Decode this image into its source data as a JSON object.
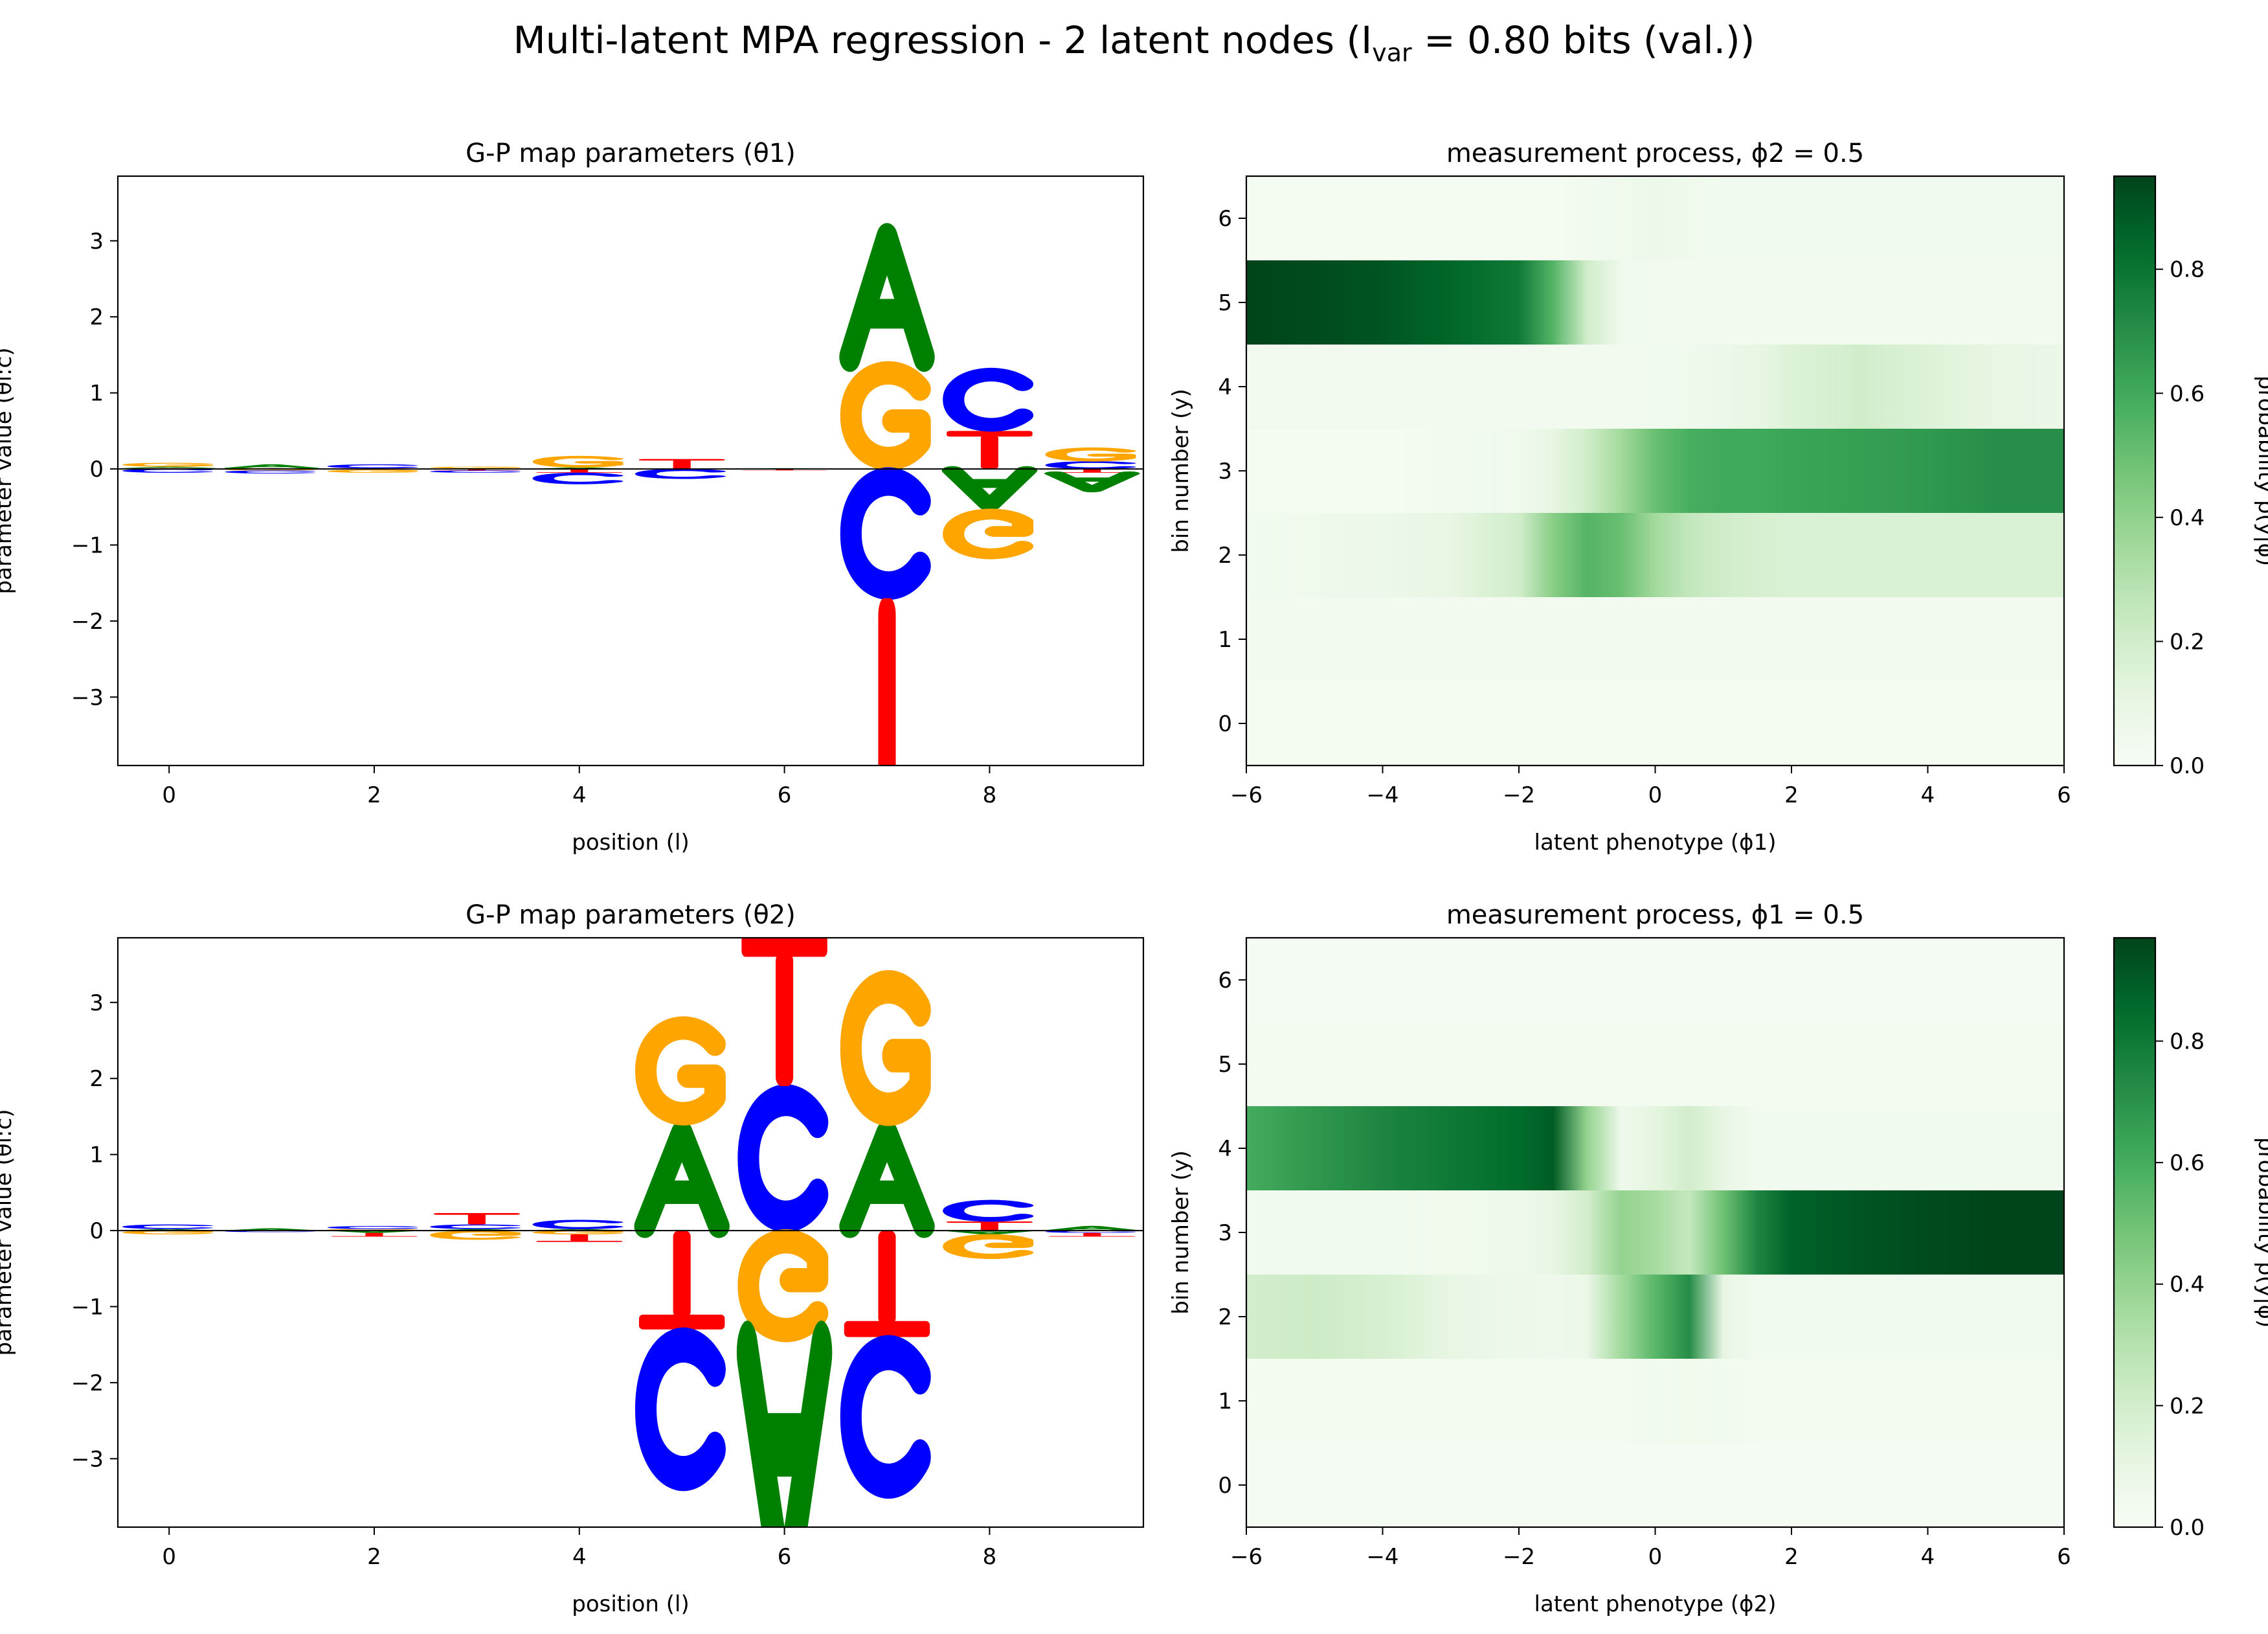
{
  "figure": {
    "title_main": "Multi-latent MPA regression - 2 latent nodes (I",
    "title_sub": "var",
    "title_end": " = 0.80 bits (val.))"
  },
  "colors": {
    "A": "#008000",
    "C": "#0000ff",
    "G": "#ffa500",
    "T": "#ff0000",
    "zero_line": "#000000"
  },
  "chart_data": [
    {
      "type": "logo",
      "title": "G-P map parameters (θ1)",
      "xlabel": "position (l)",
      "ylabel": "parameter value (θl:c)",
      "xlim": [
        -0.5,
        9.5
      ],
      "ylim": [
        -3.9,
        3.85
      ],
      "xticks": [
        0,
        2,
        4,
        6,
        8
      ],
      "yticks": [
        -3,
        -2,
        -1,
        0,
        1,
        2,
        3
      ],
      "letters": [
        "A",
        "C",
        "G",
        "T"
      ],
      "values": [
        [
          0.02,
          -0.05,
          0.05,
          0.01
        ],
        [
          0.05,
          -0.04,
          -0.02,
          0.01
        ],
        [
          -0.01,
          0.05,
          -0.04,
          0.01
        ],
        [
          0.01,
          -0.03,
          0.02,
          -0.02
        ],
        [
          0.02,
          -0.15,
          0.15,
          -0.05
        ],
        [
          0.0,
          -0.13,
          0.0,
          0.13
        ],
        [
          0.01,
          0.0,
          0.0,
          -0.02
        ],
        [
          1.78,
          -1.7,
          1.4,
          -3.7
        ],
        [
          -0.53,
          0.82,
          -0.65,
          0.5
        ],
        [
          -0.25,
          0.1,
          0.18,
          -0.05
        ]
      ]
    },
    {
      "type": "heatmap",
      "title": "measurement process, ϕ2 = 0.5",
      "xlabel": "latent phenotype (ϕ1)",
      "ylabel": "bin number (y)",
      "colorbar_label": "probability  p(y|ϕ)",
      "xlim": [
        -6,
        6
      ],
      "ylim": [
        -0.5,
        6.5
      ],
      "xticks": [
        -6,
        -4,
        -2,
        0,
        2,
        4,
        6
      ],
      "yticks": [
        0,
        1,
        2,
        3,
        4,
        5,
        6
      ],
      "clim": [
        0,
        0.95
      ],
      "cticks": [
        0.0,
        0.2,
        0.4,
        0.6,
        0.8
      ],
      "x": [
        -6,
        -5,
        -4,
        -3,
        -2,
        -1.5,
        -1,
        -0.5,
        0,
        0.5,
        1,
        1.5,
        2,
        3,
        4,
        5,
        6
      ],
      "rows": [
        {
          "bin": 0,
          "values": [
            0.02,
            0.02,
            0.02,
            0.02,
            0.02,
            0.02,
            0.02,
            0.02,
            0.02,
            0.02,
            0.02,
            0.02,
            0.02,
            0.02,
            0.02,
            0.02,
            0.02
          ]
        },
        {
          "bin": 1,
          "values": [
            0.03,
            0.03,
            0.03,
            0.03,
            0.03,
            0.03,
            0.03,
            0.03,
            0.03,
            0.03,
            0.03,
            0.03,
            0.03,
            0.03,
            0.03,
            0.03,
            0.03
          ]
        },
        {
          "bin": 2,
          "values": [
            0.04,
            0.05,
            0.07,
            0.1,
            0.2,
            0.42,
            0.55,
            0.5,
            0.35,
            0.25,
            0.2,
            0.18,
            0.16,
            0.16,
            0.16,
            0.16,
            0.16
          ]
        },
        {
          "bin": 3,
          "values": [
            0.02,
            0.02,
            0.02,
            0.03,
            0.05,
            0.1,
            0.2,
            0.35,
            0.5,
            0.58,
            0.6,
            0.6,
            0.62,
            0.64,
            0.66,
            0.7,
            0.7
          ]
        },
        {
          "bin": 4,
          "values": [
            0.03,
            0.03,
            0.03,
            0.03,
            0.03,
            0.03,
            0.03,
            0.03,
            0.04,
            0.05,
            0.07,
            0.1,
            0.15,
            0.2,
            0.15,
            0.1,
            0.08
          ]
        },
        {
          "bin": 5,
          "values": [
            0.95,
            0.93,
            0.9,
            0.85,
            0.78,
            0.55,
            0.2,
            0.05,
            0.03,
            0.03,
            0.03,
            0.03,
            0.03,
            0.03,
            0.03,
            0.03,
            0.03
          ]
        },
        {
          "bin": 6,
          "values": [
            0.02,
            0.02,
            0.02,
            0.02,
            0.02,
            0.02,
            0.03,
            0.05,
            0.06,
            0.05,
            0.04,
            0.04,
            0.04,
            0.04,
            0.04,
            0.04,
            0.04
          ]
        }
      ]
    },
    {
      "type": "logo",
      "title": "G-P map parameters (θ2)",
      "xlabel": "position (l)",
      "ylabel": "parameter value (θl:c)",
      "xlim": [
        -0.5,
        9.5
      ],
      "ylim": [
        -3.9,
        3.85
      ],
      "xticks": [
        0,
        2,
        4,
        6,
        8
      ],
      "yticks": [
        -3,
        -2,
        -1,
        0,
        1,
        2,
        3
      ],
      "letters": [
        "A",
        "C",
        "G",
        "T"
      ],
      "values": [
        [
          0.02,
          0.06,
          -0.05,
          0.0
        ],
        [
          0.03,
          -0.02,
          0.0,
          0.0
        ],
        [
          -0.03,
          0.04,
          0.02,
          -0.05
        ],
        [
          0.02,
          0.06,
          -0.12,
          0.15
        ],
        [
          0.02,
          0.12,
          -0.05,
          -0.1
        ],
        [
          1.4,
          -2.1,
          1.4,
          -1.3
        ],
        [
          -3.8,
          1.9,
          -1.45,
          2.0
        ],
        [
          1.4,
          -2.1,
          2.0,
          -1.4
        ],
        [
          -0.05,
          0.28,
          -0.32,
          0.12
        ],
        [
          0.06,
          -0.03,
          0.0,
          -0.05
        ]
      ]
    },
    {
      "type": "heatmap",
      "title": "measurement process, ϕ1 = 0.5",
      "xlabel": "latent phenotype (ϕ2)",
      "ylabel": "bin number (y)",
      "colorbar_label": "probability  p(y|ϕ)",
      "xlim": [
        -6,
        6
      ],
      "ylim": [
        -0.5,
        6.5
      ],
      "xticks": [
        -6,
        -4,
        -2,
        0,
        2,
        4,
        6
      ],
      "yticks": [
        0,
        1,
        2,
        3,
        4,
        5,
        6
      ],
      "clim": [
        0,
        0.97
      ],
      "cticks": [
        0.0,
        0.2,
        0.4,
        0.6,
        0.8
      ],
      "x": [
        -6,
        -5,
        -4,
        -3,
        -2,
        -1.5,
        -1,
        -0.5,
        0,
        0.5,
        1,
        1.5,
        2,
        3,
        4,
        5,
        6
      ],
      "rows": [
        {
          "bin": 0,
          "values": [
            0.02,
            0.02,
            0.02,
            0.02,
            0.02,
            0.02,
            0.02,
            0.02,
            0.02,
            0.02,
            0.02,
            0.02,
            0.02,
            0.02,
            0.02,
            0.02,
            0.02
          ]
        },
        {
          "bin": 1,
          "values": [
            0.03,
            0.03,
            0.03,
            0.03,
            0.03,
            0.03,
            0.03,
            0.03,
            0.04,
            0.05,
            0.04,
            0.03,
            0.03,
            0.03,
            0.03,
            0.03,
            0.03
          ]
        },
        {
          "bin": 2,
          "values": [
            0.2,
            0.22,
            0.18,
            0.1,
            0.07,
            0.06,
            0.08,
            0.35,
            0.55,
            0.72,
            0.1,
            0.04,
            0.04,
            0.04,
            0.04,
            0.04,
            0.04
          ]
        },
        {
          "bin": 3,
          "values": [
            0.04,
            0.04,
            0.04,
            0.05,
            0.06,
            0.1,
            0.2,
            0.4,
            0.35,
            0.25,
            0.5,
            0.75,
            0.88,
            0.92,
            0.95,
            0.97,
            0.97
          ]
        },
        {
          "bin": 4,
          "values": [
            0.6,
            0.68,
            0.75,
            0.8,
            0.85,
            0.9,
            0.4,
            0.06,
            0.12,
            0.2,
            0.1,
            0.04,
            0.04,
            0.04,
            0.04,
            0.04,
            0.04
          ]
        },
        {
          "bin": 5,
          "values": [
            0.03,
            0.03,
            0.03,
            0.03,
            0.03,
            0.03,
            0.03,
            0.03,
            0.03,
            0.03,
            0.03,
            0.03,
            0.03,
            0.03,
            0.03,
            0.03,
            0.03
          ]
        },
        {
          "bin": 6,
          "values": [
            0.02,
            0.02,
            0.02,
            0.02,
            0.02,
            0.02,
            0.02,
            0.02,
            0.02,
            0.02,
            0.02,
            0.02,
            0.02,
            0.02,
            0.02,
            0.02,
            0.02
          ]
        }
      ]
    }
  ]
}
